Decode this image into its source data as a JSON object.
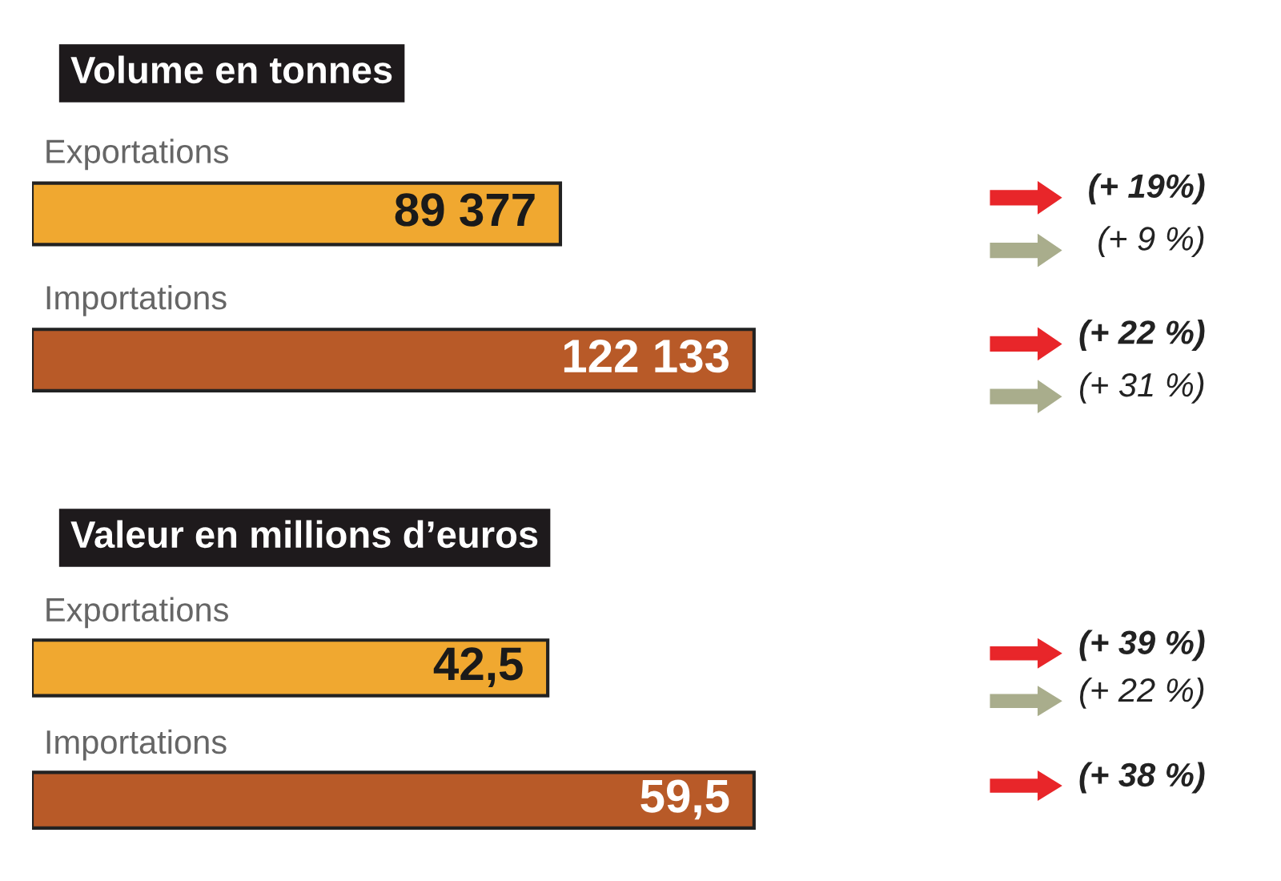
{
  "chart_data": [
    {
      "type": "bar",
      "orientation": "horizontal",
      "title": "Volume en tonnes",
      "categories": [
        "Exportations",
        "Importations"
      ],
      "values": [
        89377,
        122133
      ],
      "colors": [
        "#f0a830",
        "#b85a28"
      ],
      "value_labels": [
        "89 377",
        "122 133"
      ],
      "annotations": [
        "(+ 19%)",
        "(+ 9 %)",
        "(+ 22 %)",
        "(+ 31 %)"
      ]
    },
    {
      "type": "bar",
      "orientation": "horizontal",
      "title": "Valeur en millions d’euros",
      "categories": [
        "Exportations",
        "Importations"
      ],
      "values": [
        42.5,
        59.5
      ],
      "colors": [
        "#f0a830",
        "#b85a28"
      ],
      "value_labels": [
        "42,5",
        "59,5"
      ],
      "annotations": [
        "(+ 39 %)",
        "(+ 22 %)",
        "(+ 38 %)"
      ]
    }
  ]
}
